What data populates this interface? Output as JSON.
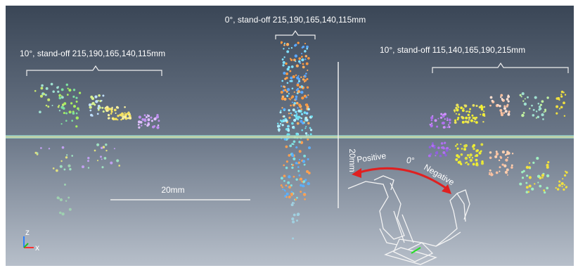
{
  "labels": {
    "center": "0°, stand-off 215,190,165,140,115mm",
    "left": "10°, stand-off 215,190,165,140,115mm",
    "right": "10°, stand-off 115,140,165,190,215mm"
  },
  "scale": {
    "horizontal": "20mm",
    "vertical": "20mm"
  },
  "rotation": {
    "positive": "Positive",
    "zero": "0°",
    "negative": "Negative"
  },
  "axes": {
    "z": "z",
    "x": "x"
  }
}
